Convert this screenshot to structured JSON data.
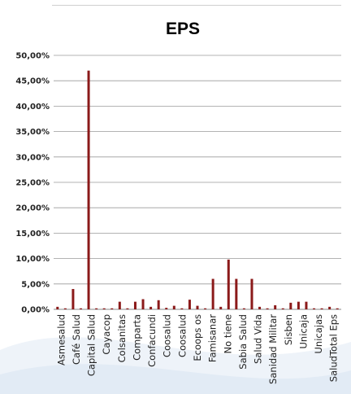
{
  "chart_data": {
    "type": "bar",
    "title": "EPS",
    "xlabel": "",
    "ylabel": "",
    "ylim": [
      0,
      50
    ],
    "y_tick_labels": [
      "0,00%",
      "5,00%",
      "10,00%",
      "15,00%",
      "20,00%",
      "25,00%",
      "30,00%",
      "35,00%",
      "40,00%",
      "45,00%",
      "50,00%"
    ],
    "x_tick_labels": [
      "Asmesalud",
      "Café Salud",
      "Capital Salud",
      "Cayacop",
      "Colsanitas",
      "Comparta",
      "Confacundi",
      "Coosalud",
      "Coosalud",
      "Ecoops os",
      "Famisanar",
      "No tiene",
      "Sabia Salud",
      "Salud Vida",
      "Sanidad Militar",
      "Sisben",
      "Unicaja",
      "Unicajas",
      "SaludTotal Eps"
    ],
    "categories": [
      "c1",
      "c2",
      "c3",
      "c4",
      "c5",
      "c6",
      "c7",
      "c8",
      "c9",
      "c10",
      "c11",
      "c12",
      "c13",
      "c14",
      "c15",
      "c16",
      "c17",
      "c18",
      "c19",
      "c20",
      "c21",
      "c22",
      "c23",
      "c24",
      "c25",
      "c26",
      "c27",
      "c28",
      "c29",
      "c30",
      "c31",
      "c32",
      "c33",
      "c34",
      "c35",
      "c36",
      "c37"
    ],
    "values": [
      0.5,
      0.2,
      4.0,
      0.2,
      47.0,
      0.2,
      0.2,
      0.2,
      1.5,
      0.2,
      1.5,
      2.0,
      0.5,
      1.8,
      0.3,
      0.7,
      0.2,
      1.9,
      0.7,
      0.2,
      6.0,
      0.5,
      9.8,
      6.0,
      0.2,
      6.0,
      0.5,
      0.2,
      0.8,
      0.2,
      1.3,
      1.5,
      1.5,
      0.2,
      0.2,
      0.5,
      0.2
    ],
    "bar_color": "#8b1a1a",
    "grid": true
  }
}
